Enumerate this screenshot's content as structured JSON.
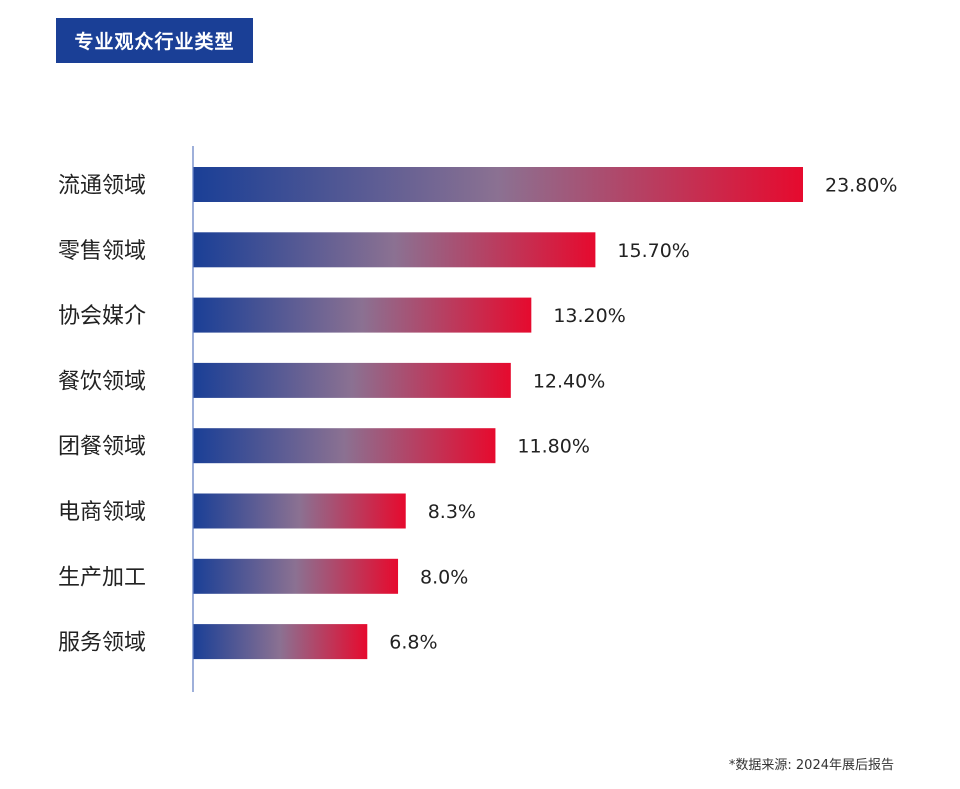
{
  "title": "专业观众行业类型",
  "source_note": "*数据来源: 2024年展后报告",
  "colors": {
    "bar_start": "#1a3f96",
    "bar_mid": "#8b7192",
    "bar_end": "#e60a2e",
    "axis": "#6b85c7",
    "title_bg": "#1a3f96"
  },
  "chart_data": {
    "type": "bar",
    "orientation": "horizontal",
    "categories": [
      "流通领域",
      "零售领域",
      "协会媒介",
      "餐饮领域",
      "团餐领域",
      "电商领域",
      "生产加工",
      "服务领域"
    ],
    "values": [
      23.8,
      15.7,
      13.2,
      12.4,
      11.8,
      8.3,
      8.0,
      6.8
    ],
    "value_labels": [
      "23.80%",
      "15.70%",
      "13.20%",
      "12.40%",
      "11.80%",
      "8.3%",
      "8.0%",
      "6.8%"
    ],
    "xlim": [
      0,
      23.8
    ],
    "grid": false,
    "legend": "none"
  }
}
